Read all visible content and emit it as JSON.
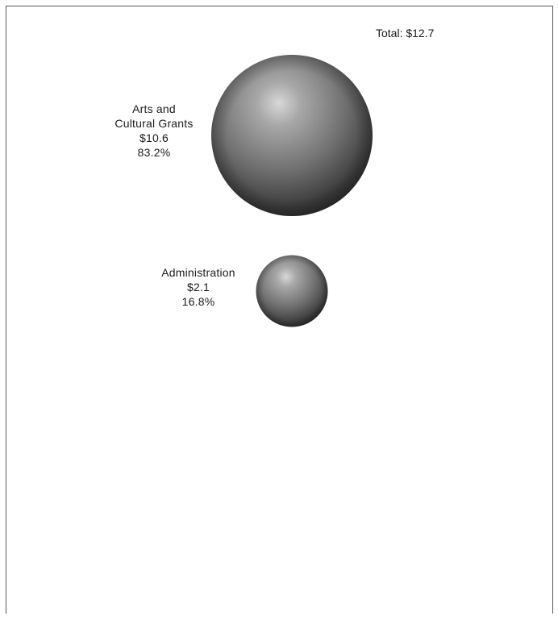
{
  "chart_data": {
    "type": "bubble",
    "total_label": "Total: $12.7",
    "total": 12.7,
    "items": [
      {
        "label_lines": [
          "Arts and",
          "Cultural Grants"
        ],
        "value": 10.6,
        "value_label": "$10.6",
        "percent": 83.2,
        "percent_label": "83.2%"
      },
      {
        "label_lines": [
          "Administration"
        ],
        "value": 2.1,
        "value_label": "$2.1",
        "percent": 16.8,
        "percent_label": "16.8%"
      }
    ],
    "colors": {
      "sphere_highlight": "#d8d8d8",
      "sphere_mid": "#7a7a7a",
      "sphere_dark": "#2a2a2a"
    }
  }
}
